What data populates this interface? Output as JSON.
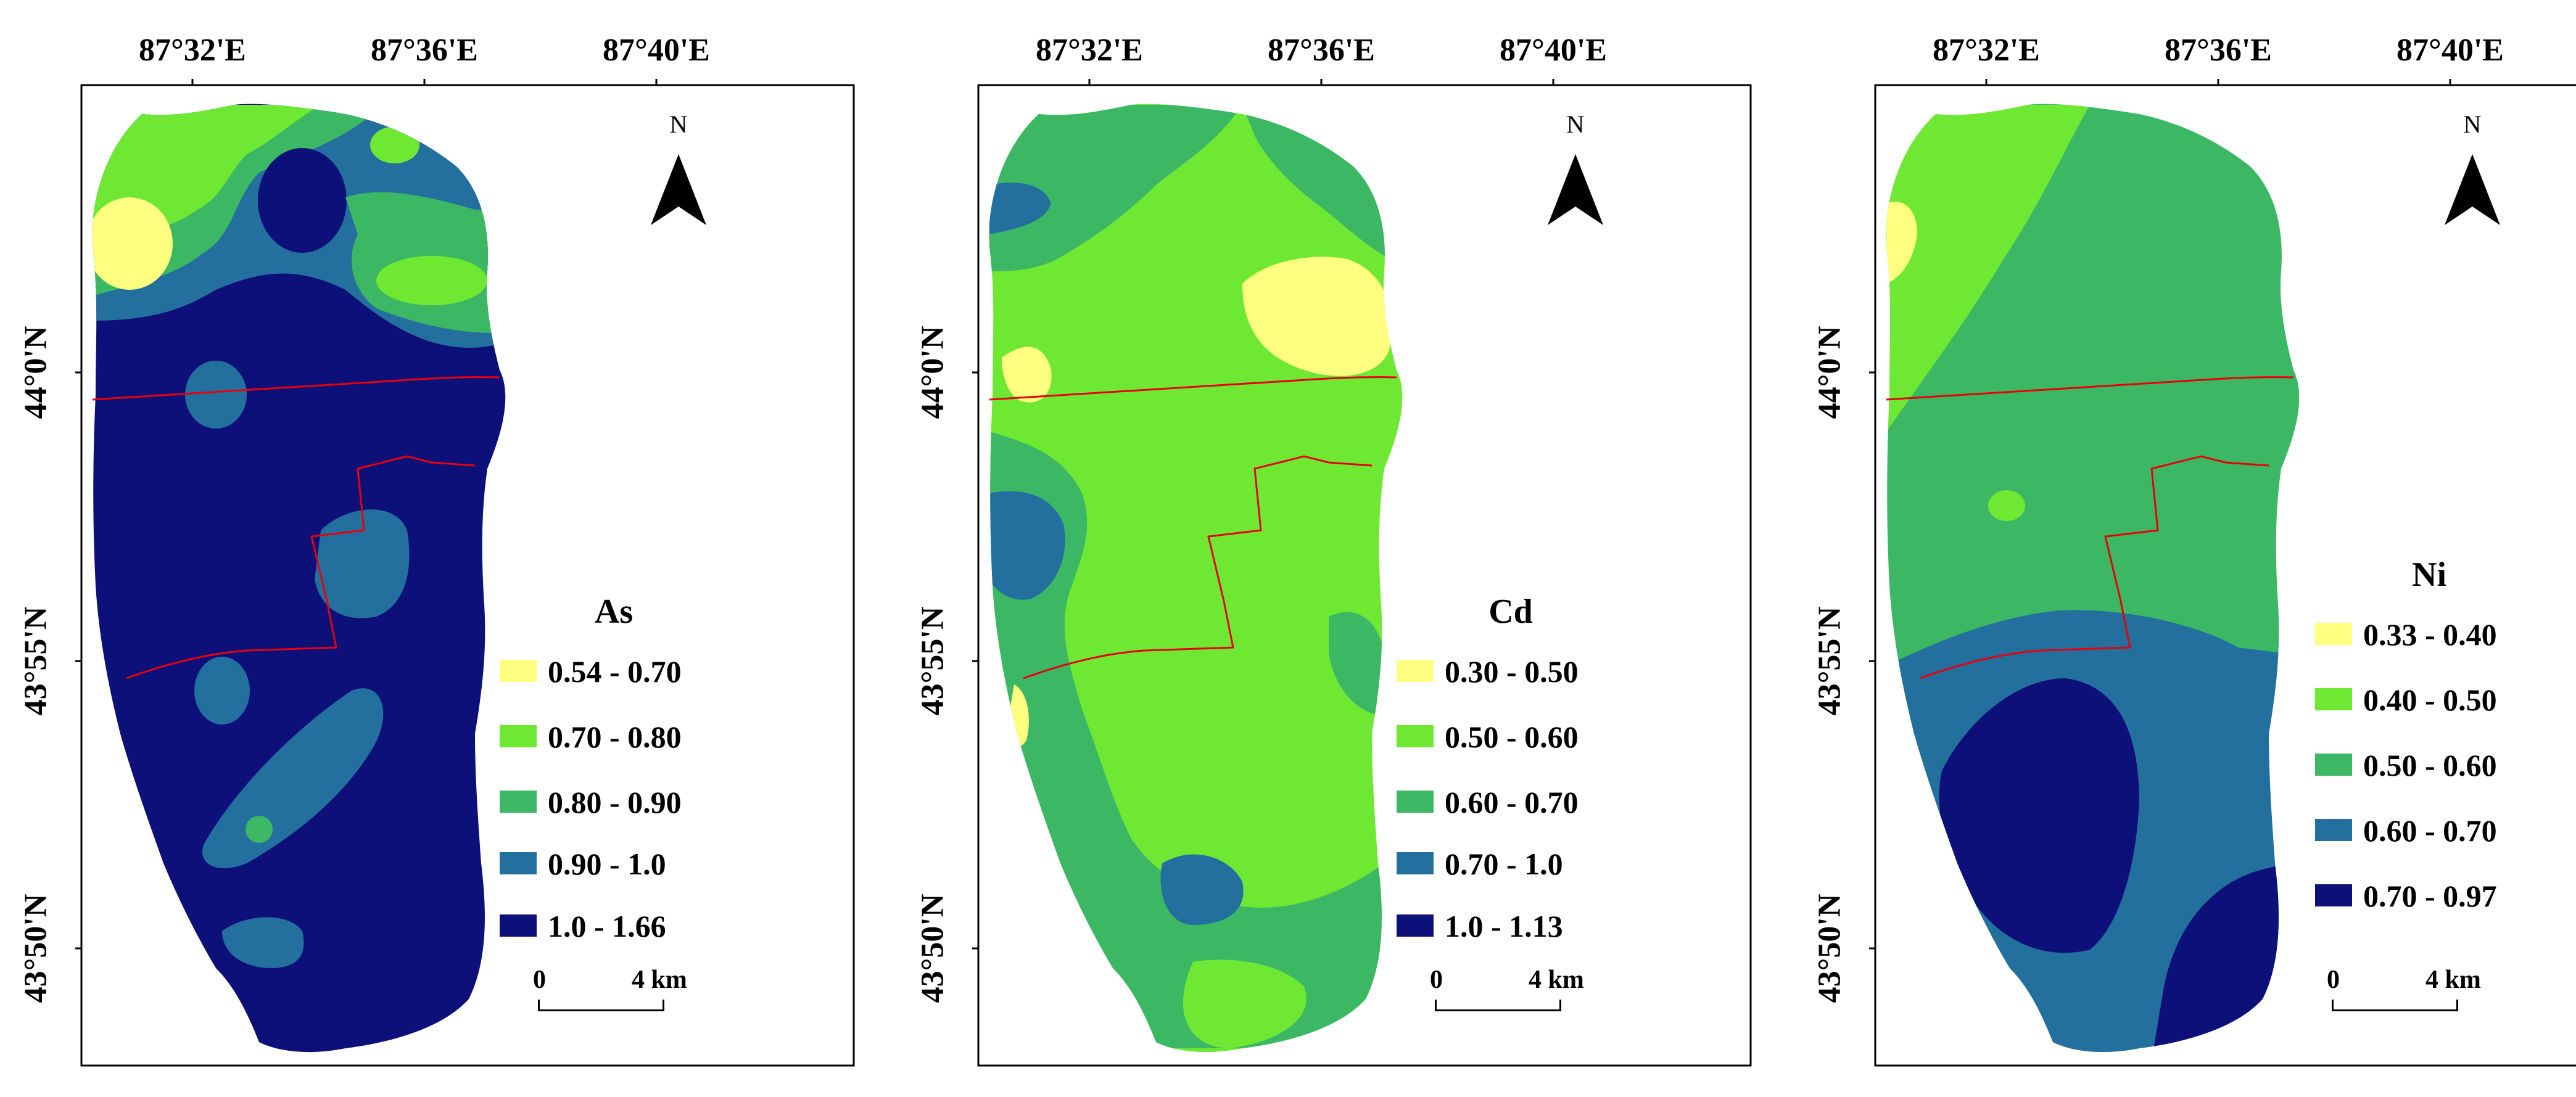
{
  "figure": {
    "lon_labels": [
      "87°32'E",
      "87°36'E",
      "87°40'E"
    ],
    "lat_labels": [
      "44°0'N",
      "43°55'N",
      "43°50'N"
    ],
    "north_letter": "N",
    "scale": {
      "zero": "0",
      "end": "4 km"
    },
    "boundary_color": "#e8000b",
    "frame_color": "#000000"
  },
  "panels": [
    {
      "legend_title": "As",
      "classes": [
        {
          "label": "0.54 - 0.70",
          "color": "#ffff80"
        },
        {
          "label": "0.70 - 0.80",
          "color": "#6fe834"
        },
        {
          "label": "0.80 - 0.90",
          "color": "#3cb865"
        },
        {
          "label": "0.90 - 1.0",
          "color": "#236f9e"
        },
        {
          "label": "1.0 - 1.66",
          "color": "#0c1078"
        }
      ]
    },
    {
      "legend_title": "Cd",
      "classes": [
        {
          "label": "0.30 - 0.50",
          "color": "#ffff80"
        },
        {
          "label": "0.50 - 0.60",
          "color": "#6fe834"
        },
        {
          "label": "0.60 - 0.70",
          "color": "#3cb865"
        },
        {
          "label": "0.70 - 1.0",
          "color": "#236f9e"
        },
        {
          "label": "1.0 - 1.13",
          "color": "#0c1078"
        }
      ]
    },
    {
      "legend_title": "Ni",
      "classes": [
        {
          "label": "0.33 - 0.40",
          "color": "#ffff80"
        },
        {
          "label": "0.40 - 0.50",
          "color": "#6fe834"
        },
        {
          "label": "0.50 - 0.60",
          "color": "#3cb865"
        },
        {
          "label": "0.60 - 0.70",
          "color": "#236f9e"
        },
        {
          "label": "0.70 - 0.97",
          "color": "#0c1078"
        }
      ]
    }
  ]
}
